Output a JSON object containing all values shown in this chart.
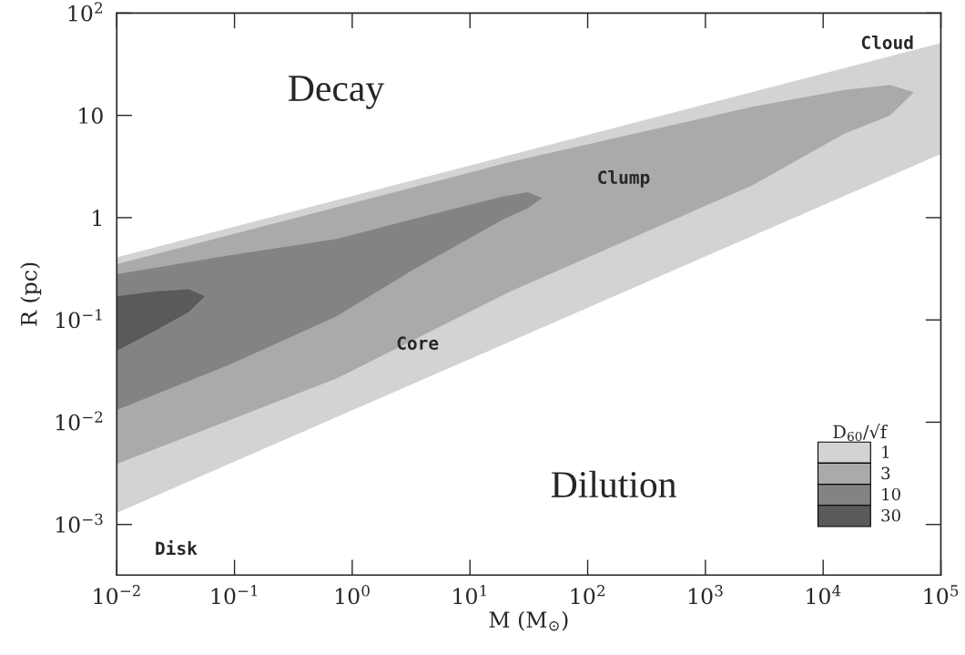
{
  "chart_data": {
    "type": "area",
    "xlabel": "M (M$_{⊙}$)",
    "ylabel": "R (pc)",
    "legend_title": "D$_{60}$/√f",
    "legend": "bottom right",
    "log": "xy",
    "xlim": [
      0.01,
      100000
    ],
    "ylim": [
      0.00032,
      100
    ],
    "xticks": [
      {
        "value": 0.01,
        "label": "10$^{−2}$"
      },
      {
        "value": 0.1,
        "label": "10$^{−1}$"
      },
      {
        "value": 1,
        "label": "10$^{0}$"
      },
      {
        "value": 10,
        "label": "10$^{1}$"
      },
      {
        "value": 100,
        "label": "10$^{2}$"
      },
      {
        "value": 1000,
        "label": "10$^{3}$"
      },
      {
        "value": 10000,
        "label": "10$^{4}$"
      },
      {
        "value": 100000,
        "label": "10$^{5}$"
      }
    ],
    "yticks": [
      {
        "value": 0.001,
        "label": "10$^{−3}$"
      },
      {
        "value": 0.01,
        "label": "10$^{−2}$"
      },
      {
        "value": 0.1,
        "label": "10$^{−1}$"
      },
      1,
      10,
      {
        "value": 100,
        "label": "10$^{2}$"
      }
    ],
    "series": [
      {
        "name": "1",
        "color": "#d3d3d3",
        "x": [
          0.01,
          100000
        ],
        "values": [
          null,
          null
        ],
        "upper": [
          0.41,
          51
        ],
        "lower": [
          0.0013,
          4.2
        ]
      },
      {
        "name": "3",
        "color": "#aaaaaa",
        "x": [
          0.01,
          0.75,
          22,
          2500,
          15000,
          37000,
          59000
        ],
        "values": [
          null,
          null,
          null,
          null,
          null,
          null,
          null
        ],
        "upper": [
          0.35,
          1.27,
          3.5,
          12.1,
          17.7,
          19.8,
          16.8
        ],
        "lower": [
          0.0039,
          0.027,
          0.19,
          2.07,
          6.6,
          10,
          16.8
        ]
      },
      {
        "name": "10",
        "color": "#838383",
        "x": [
          0.01,
          0.093,
          0.74,
          3.3,
          19.4,
          31,
          41
        ],
        "values": [
          null,
          null,
          null,
          null,
          null,
          null,
          null
        ],
        "upper": [
          0.28,
          0.43,
          0.62,
          0.97,
          1.62,
          1.77,
          1.56
        ],
        "lower": [
          0.0132,
          0.037,
          0.109,
          0.31,
          0.97,
          1.24,
          1.56
        ]
      },
      {
        "name": "30",
        "color": "#5a5a5a",
        "x": [
          0.01,
          0.021,
          0.041,
          0.056
        ],
        "values": [
          null,
          null,
          null,
          null
        ],
        "upper": [
          0.17,
          0.19,
          0.2,
          0.17
        ],
        "lower": [
          0.05,
          0.078,
          0.12,
          0.17
        ]
      }
    ],
    "annotations": [
      "Decay",
      "Dilution",
      "Cloud",
      "Clump",
      "Core",
      "Disk"
    ]
  }
}
